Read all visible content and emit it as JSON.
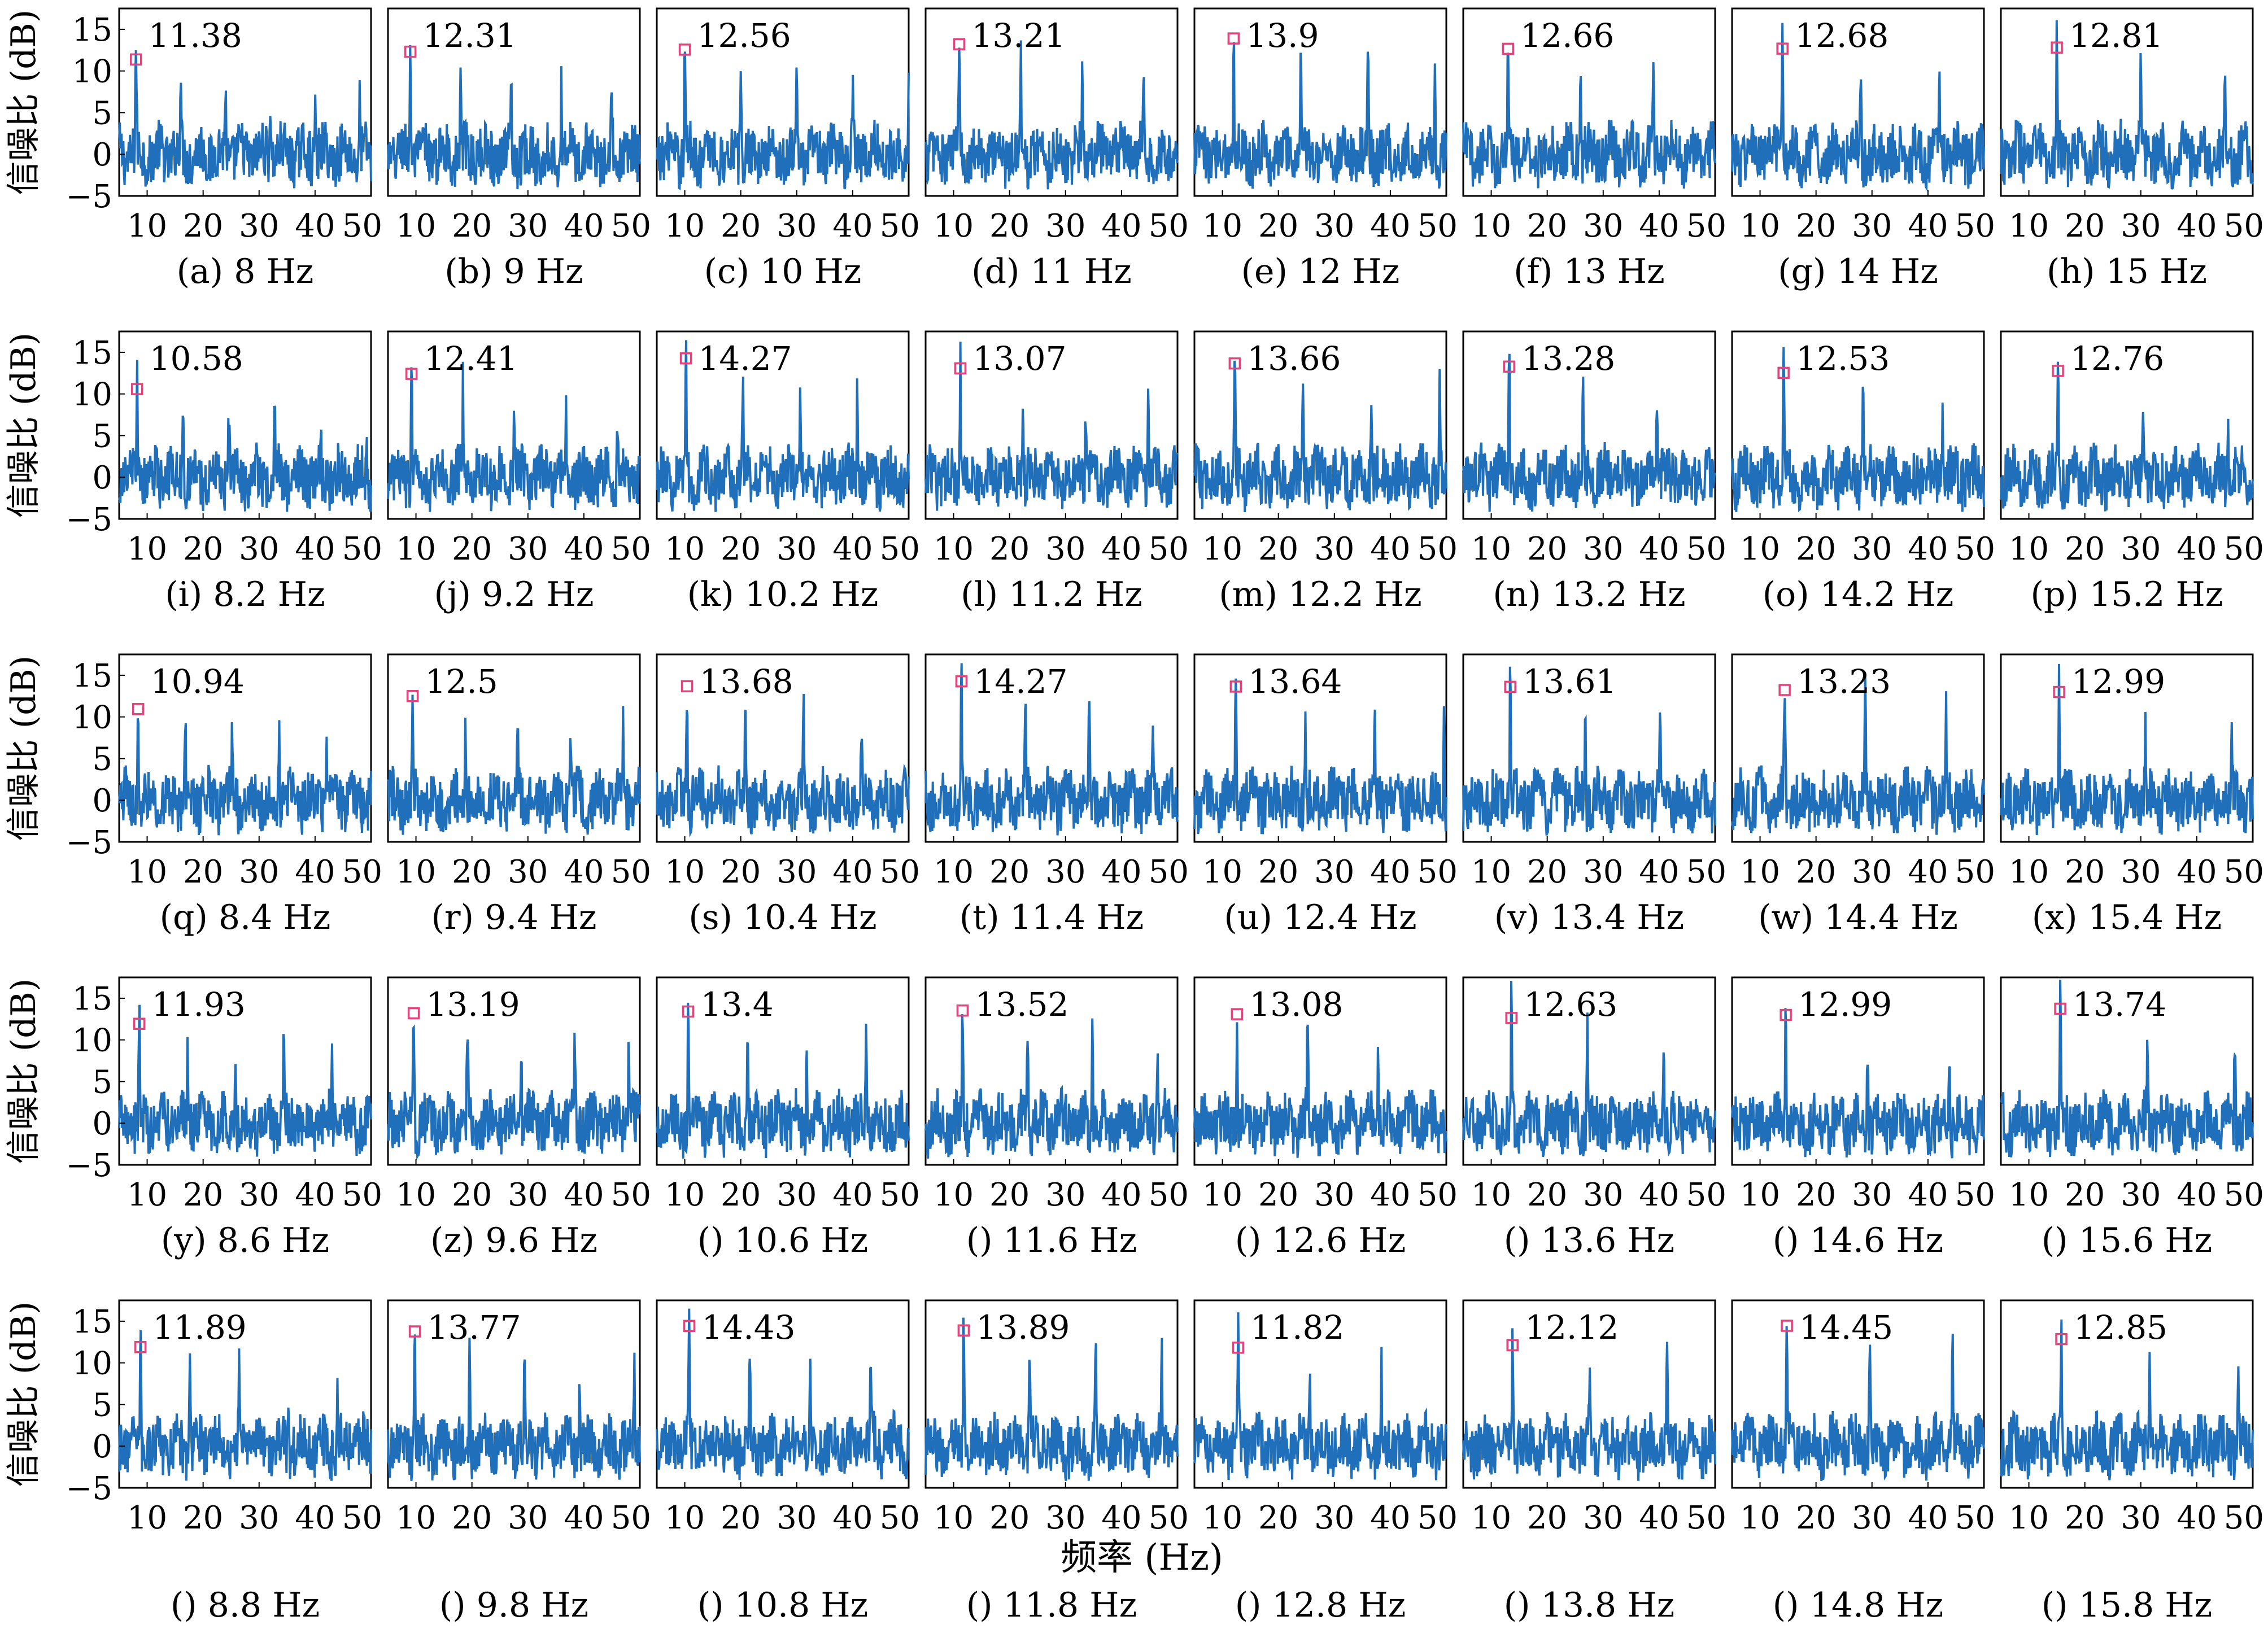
{
  "figure": {
    "xlabel": "频率 (Hz)",
    "ylabel": "信噪比 (dB)",
    "xlim": [
      5,
      50
    ],
    "ylim": [
      -5,
      17.5
    ],
    "yticks": [
      -5,
      0,
      5,
      10,
      15
    ],
    "grid": false,
    "colors": {
      "series": "#1f6fba",
      "marker": "#e0457b",
      "axes": "#000000"
    }
  },
  "chart_data": [
    {
      "type": "line",
      "panel_label": "(a) 8 Hz",
      "stim_hz": 8,
      "peak_label": "11.38",
      "peak": {
        "x": 8,
        "y": 11.38
      }
    },
    {
      "type": "line",
      "panel_label": "(b) 9 Hz",
      "stim_hz": 9,
      "peak_label": "12.31",
      "peak": {
        "x": 9,
        "y": 12.31
      }
    },
    {
      "type": "line",
      "panel_label": "(c) 10 Hz",
      "stim_hz": 10,
      "peak_label": "12.56",
      "peak": {
        "x": 10,
        "y": 12.56
      }
    },
    {
      "type": "line",
      "panel_label": "(d) 11 Hz",
      "stim_hz": 11,
      "peak_label": "13.21",
      "peak": {
        "x": 11,
        "y": 13.21
      }
    },
    {
      "type": "line",
      "panel_label": "(e) 12 Hz",
      "stim_hz": 12,
      "peak_label": "13.9",
      "peak": {
        "x": 12,
        "y": 13.9
      }
    },
    {
      "type": "line",
      "panel_label": "(f) 13 Hz",
      "stim_hz": 13,
      "peak_label": "12.66",
      "peak": {
        "x": 13,
        "y": 12.66
      }
    },
    {
      "type": "line",
      "panel_label": "(g) 14 Hz",
      "stim_hz": 14,
      "peak_label": "12.68",
      "peak": {
        "x": 14,
        "y": 12.68
      }
    },
    {
      "type": "line",
      "panel_label": "(h) 15 Hz",
      "stim_hz": 15,
      "peak_label": "12.81",
      "peak": {
        "x": 15,
        "y": 12.81
      }
    },
    {
      "type": "line",
      "panel_label": "(i) 8.2 Hz",
      "stim_hz": 8.2,
      "peak_label": "10.58",
      "peak": {
        "x": 8.2,
        "y": 10.58
      }
    },
    {
      "type": "line",
      "panel_label": "(j) 9.2 Hz",
      "stim_hz": 9.2,
      "peak_label": "12.41",
      "peak": {
        "x": 9.2,
        "y": 12.41
      }
    },
    {
      "type": "line",
      "panel_label": "(k) 10.2 Hz",
      "stim_hz": 10.2,
      "peak_label": "14.27",
      "peak": {
        "x": 10.2,
        "y": 14.27
      }
    },
    {
      "type": "line",
      "panel_label": "(l) 11.2 Hz",
      "stim_hz": 11.2,
      "peak_label": "13.07",
      "peak": {
        "x": 11.2,
        "y": 13.07
      }
    },
    {
      "type": "line",
      "panel_label": "(m) 12.2 Hz",
      "stim_hz": 12.2,
      "peak_label": "13.66",
      "peak": {
        "x": 12.2,
        "y": 13.66
      }
    },
    {
      "type": "line",
      "panel_label": "(n) 13.2 Hz",
      "stim_hz": 13.2,
      "peak_label": "13.28",
      "peak": {
        "x": 13.2,
        "y": 13.28
      }
    },
    {
      "type": "line",
      "panel_label": "(o) 14.2 Hz",
      "stim_hz": 14.2,
      "peak_label": "12.53",
      "peak": {
        "x": 14.2,
        "y": 12.53
      }
    },
    {
      "type": "line",
      "panel_label": "(p) 15.2 Hz",
      "stim_hz": 15.2,
      "peak_label": "12.76",
      "peak": {
        "x": 15.2,
        "y": 12.76
      }
    },
    {
      "type": "line",
      "panel_label": "(q) 8.4 Hz",
      "stim_hz": 8.4,
      "peak_label": "10.94",
      "peak": {
        "x": 8.4,
        "y": 10.94
      }
    },
    {
      "type": "line",
      "panel_label": "(r) 9.4 Hz",
      "stim_hz": 9.4,
      "peak_label": "12.5",
      "peak": {
        "x": 9.4,
        "y": 12.5
      }
    },
    {
      "type": "line",
      "panel_label": "(s) 10.4 Hz",
      "stim_hz": 10.4,
      "peak_label": "13.68",
      "peak": {
        "x": 10.4,
        "y": 13.68
      }
    },
    {
      "type": "line",
      "panel_label": "(t) 11.4 Hz",
      "stim_hz": 11.4,
      "peak_label": "14.27",
      "peak": {
        "x": 11.4,
        "y": 14.27
      }
    },
    {
      "type": "line",
      "panel_label": "(u) 12.4 Hz",
      "stim_hz": 12.4,
      "peak_label": "13.64",
      "peak": {
        "x": 12.4,
        "y": 13.64
      }
    },
    {
      "type": "line",
      "panel_label": "(v) 13.4 Hz",
      "stim_hz": 13.4,
      "peak_label": "13.61",
      "peak": {
        "x": 13.4,
        "y": 13.61
      }
    },
    {
      "type": "line",
      "panel_label": "(w) 14.4 Hz",
      "stim_hz": 14.4,
      "peak_label": "13.23",
      "peak": {
        "x": 14.4,
        "y": 13.23
      }
    },
    {
      "type": "line",
      "panel_label": "(x) 15.4 Hz",
      "stim_hz": 15.4,
      "peak_label": "12.99",
      "peak": {
        "x": 15.4,
        "y": 12.99
      }
    },
    {
      "type": "line",
      "panel_label": "(y) 8.6 Hz",
      "stim_hz": 8.6,
      "peak_label": "11.93",
      "peak": {
        "x": 8.6,
        "y": 11.93
      }
    },
    {
      "type": "line",
      "panel_label": "(z) 9.6 Hz",
      "stim_hz": 9.6,
      "peak_label": "13.19",
      "peak": {
        "x": 9.6,
        "y": 13.19
      }
    },
    {
      "type": "line",
      "panel_label": "() 10.6 Hz",
      "stim_hz": 10.6,
      "peak_label": "13.4",
      "peak": {
        "x": 10.6,
        "y": 13.4
      }
    },
    {
      "type": "line",
      "panel_label": "() 11.6 Hz",
      "stim_hz": 11.6,
      "peak_label": "13.52",
      "peak": {
        "x": 11.6,
        "y": 13.52
      }
    },
    {
      "type": "line",
      "panel_label": "() 12.6 Hz",
      "stim_hz": 12.6,
      "peak_label": "13.08",
      "peak": {
        "x": 12.6,
        "y": 13.08
      }
    },
    {
      "type": "line",
      "panel_label": "() 13.6 Hz",
      "stim_hz": 13.6,
      "peak_label": "12.63",
      "peak": {
        "x": 13.6,
        "y": 12.63
      }
    },
    {
      "type": "line",
      "panel_label": "() 14.6 Hz",
      "stim_hz": 14.6,
      "peak_label": "12.99",
      "peak": {
        "x": 14.6,
        "y": 12.99
      }
    },
    {
      "type": "line",
      "panel_label": "() 15.6 Hz",
      "stim_hz": 15.6,
      "peak_label": "13.74",
      "peak": {
        "x": 15.6,
        "y": 13.74
      }
    },
    {
      "type": "line",
      "panel_label": "() 8.8 Hz",
      "stim_hz": 8.8,
      "peak_label": "11.89",
      "peak": {
        "x": 8.8,
        "y": 11.89
      }
    },
    {
      "type": "line",
      "panel_label": "() 9.8 Hz",
      "stim_hz": 9.8,
      "peak_label": "13.77",
      "peak": {
        "x": 9.8,
        "y": 13.77
      }
    },
    {
      "type": "line",
      "panel_label": "() 10.8 Hz",
      "stim_hz": 10.8,
      "peak_label": "14.43",
      "peak": {
        "x": 10.8,
        "y": 14.43
      }
    },
    {
      "type": "line",
      "panel_label": "() 11.8 Hz",
      "stim_hz": 11.8,
      "peak_label": "13.89",
      "peak": {
        "x": 11.8,
        "y": 13.89
      }
    },
    {
      "type": "line",
      "panel_label": "() 12.8 Hz",
      "stim_hz": 12.8,
      "peak_label": "11.82",
      "peak": {
        "x": 12.8,
        "y": 11.82
      }
    },
    {
      "type": "line",
      "panel_label": "() 13.8 Hz",
      "stim_hz": 13.8,
      "peak_label": "12.12",
      "peak": {
        "x": 13.8,
        "y": 12.12
      }
    },
    {
      "type": "line",
      "panel_label": "() 14.8 Hz",
      "stim_hz": 14.8,
      "peak_label": "14.45",
      "peak": {
        "x": 14.8,
        "y": 14.45
      }
    },
    {
      "type": "line",
      "panel_label": "() 15.8 Hz",
      "stim_hz": 15.8,
      "peak_label": "12.85",
      "peak": {
        "x": 15.8,
        "y": 12.85
      }
    }
  ]
}
